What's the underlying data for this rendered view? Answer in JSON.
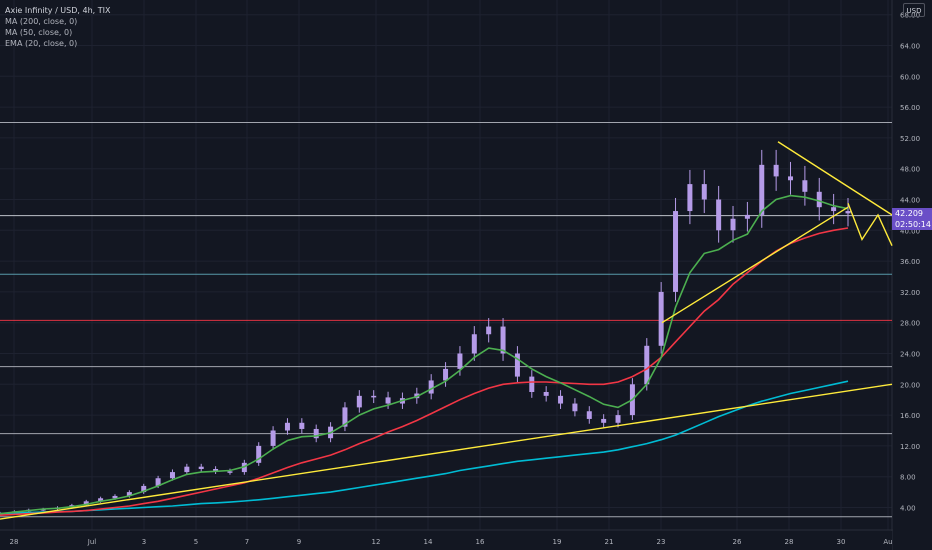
{
  "legend": {
    "symbol": "Axie Infinity / USD, 4h, TIX",
    "indicators": [
      "MA (200, close, 0)",
      "MA (50, close, 0)",
      "EMA (20, close, 0)"
    ]
  },
  "currency": "USD",
  "last_price": {
    "value": "42.209",
    "countdown": "02:50:14",
    "color": "#6a4fc7"
  },
  "colors": {
    "background": "#131722",
    "candle": "#b59be8",
    "ema20": "#4caf50",
    "ma50": "#f23645",
    "ma200": "#00bcd4",
    "trendline": "#ffeb3b"
  },
  "chart_data": {
    "type": "line",
    "title": "Axie Infinity / USD, 4h, TIX",
    "x_ticks": [
      "28",
      "Jul",
      "3",
      "5",
      "7",
      "9",
      "12",
      "14",
      "16",
      "19",
      "21",
      "23",
      "26",
      "28",
      "30",
      "Au"
    ],
    "y_ticks": [
      4,
      8,
      12,
      16,
      20,
      24,
      28,
      32,
      36,
      40,
      44,
      48,
      52,
      56,
      60,
      64,
      68
    ],
    "ylim": [
      2,
      70
    ],
    "horizontal_levels": [
      {
        "value": 54.0,
        "color": "#b2b5be"
      },
      {
        "value": 41.9,
        "color": "#d1d4dc"
      },
      {
        "value": 34.3,
        "color": "#5fa8b8"
      },
      {
        "value": 28.3,
        "color": "#f23645"
      },
      {
        "value": 22.3,
        "color": "#b2b5be"
      },
      {
        "value": 13.6,
        "color": "#b2b5be"
      },
      {
        "value": 2.8,
        "color": "#b2b5be"
      }
    ],
    "series": [
      {
        "key": "price",
        "values": [
          3.3,
          3.5,
          3.7,
          3.8,
          4.0,
          4.3,
          4.8,
          5.2,
          5.5,
          6.0,
          6.8,
          7.8,
          8.6,
          9.3,
          9.0,
          8.7,
          8.6,
          9.8,
          12.0,
          14.0,
          15.0,
          14.2,
          13.0,
          14.5,
          17.0,
          18.5,
          18.3,
          17.5,
          18.2,
          18.8,
          20.5,
          22.0,
          24.0,
          26.5,
          27.5,
          24.0,
          21.0,
          19.0,
          18.5,
          17.5,
          16.5,
          15.5,
          15.0,
          16.0,
          20.0,
          25.0,
          32.0,
          42.5,
          46.0,
          44.0,
          40.0,
          41.5,
          42.0,
          48.5,
          47.0,
          46.5,
          45.0,
          43.0,
          42.5,
          42.2
        ]
      },
      {
        "key": "ema20",
        "values": [
          3.2,
          3.4,
          3.6,
          3.8,
          3.9,
          4.1,
          4.4,
          4.8,
          5.1,
          5.5,
          6.1,
          6.8,
          7.6,
          8.3,
          8.6,
          8.7,
          8.8,
          9.3,
          10.3,
          11.6,
          12.7,
          13.2,
          13.3,
          13.7,
          14.8,
          16.0,
          16.8,
          17.3,
          17.9,
          18.4,
          19.4,
          20.4,
          21.8,
          23.5,
          24.7,
          24.4,
          23.3,
          22.0,
          21.0,
          20.2,
          19.3,
          18.4,
          17.4,
          17.0,
          18.0,
          20.0,
          23.5,
          30.0,
          34.5,
          37.0,
          37.5,
          38.7,
          39.5,
          42.5,
          44.0,
          44.5,
          44.3,
          43.8,
          43.2,
          42.8
        ]
      },
      {
        "key": "ma50",
        "values": [
          3.0,
          3.1,
          3.2,
          3.3,
          3.4,
          3.5,
          3.6,
          3.8,
          4.0,
          4.2,
          4.5,
          4.8,
          5.2,
          5.6,
          6.0,
          6.4,
          6.8,
          7.2,
          7.8,
          8.5,
          9.2,
          9.8,
          10.3,
          10.8,
          11.5,
          12.3,
          13.0,
          13.8,
          14.5,
          15.3,
          16.2,
          17.1,
          18.0,
          18.8,
          19.5,
          20.0,
          20.2,
          20.3,
          20.3,
          20.2,
          20.1,
          20.0,
          20.0,
          20.3,
          21.0,
          22.0,
          23.5,
          25.5,
          27.5,
          29.5,
          31.0,
          33.0,
          34.5,
          36.0,
          37.3,
          38.3,
          39.0,
          39.6,
          40.0,
          40.3
        ]
      },
      {
        "key": "ma200",
        "values": [
          3.2,
          3.3,
          3.35,
          3.4,
          3.45,
          3.5,
          3.6,
          3.7,
          3.8,
          3.9,
          4.0,
          4.1,
          4.2,
          4.35,
          4.5,
          4.6,
          4.7,
          4.85,
          5.0,
          5.2,
          5.4,
          5.6,
          5.8,
          6.0,
          6.3,
          6.6,
          6.9,
          7.2,
          7.5,
          7.8,
          8.1,
          8.4,
          8.8,
          9.1,
          9.4,
          9.7,
          10.0,
          10.2,
          10.4,
          10.6,
          10.8,
          11.0,
          11.2,
          11.5,
          11.9,
          12.3,
          12.8,
          13.4,
          14.2,
          15.0,
          15.8,
          16.5,
          17.2,
          17.8,
          18.3,
          18.8,
          19.2,
          19.6,
          20.0,
          20.4
        ]
      }
    ],
    "series_x_start": 0,
    "series_x_end": 848,
    "trendlines": [
      {
        "from": [
          0,
          2.5
        ],
        "to": [
          892,
          20.0
        ]
      },
      {
        "from": [
          662,
          28.0
        ],
        "to": [
          848,
          43.0
        ]
      },
      {
        "from": [
          778,
          51.5
        ],
        "to": [
          892,
          42.0
        ]
      },
      {
        "from": [
          848,
          43.5
        ],
        "to": [
          862,
          38.8
        ],
        "path": [
          [
            848,
            43.5
          ],
          [
            862,
            38.8
          ],
          [
            878,
            42.0
          ],
          [
            892,
            38.0
          ]
        ]
      }
    ]
  }
}
